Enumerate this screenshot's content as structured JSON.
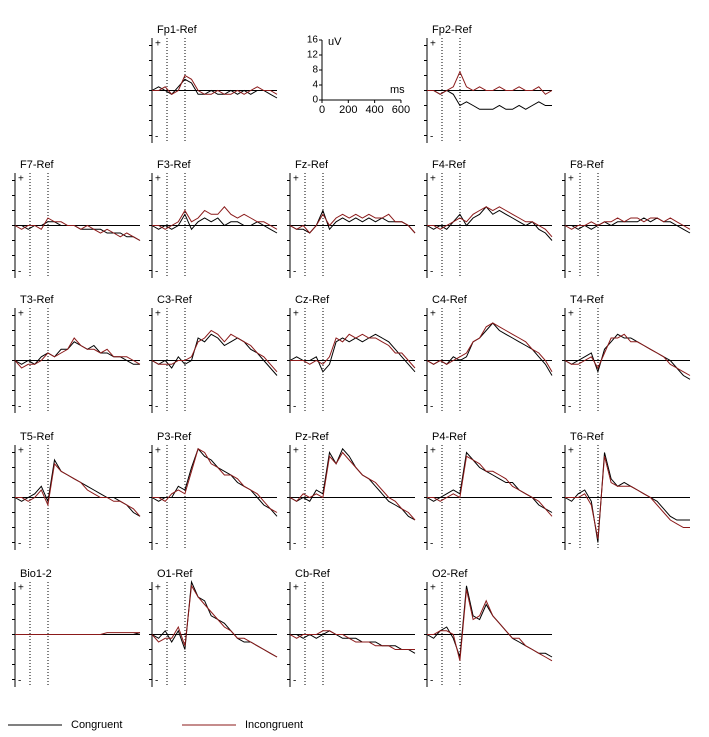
{
  "chart_data": {
    "type": "line",
    "x": [
      -250,
      -200,
      -150,
      -100,
      -50,
      0,
      50,
      100,
      150,
      200,
      250,
      300,
      350,
      400,
      450,
      500,
      550,
      600,
      650,
      700
    ],
    "xlim": [
      -250,
      700
    ],
    "ylim": [
      -14,
      14
    ],
    "panel_yticks": [
      -12,
      -8,
      -4,
      0,
      4,
      8,
      12
    ],
    "axis_signs": [
      "+",
      "-"
    ],
    "legend": [
      {
        "name": "Congruent",
        "color": "#000000"
      },
      {
        "name": "Incongruent",
        "color": "#8b1a1a"
      }
    ],
    "scale": {
      "xlabel": "ms",
      "ylabel": "uV",
      "xticks": [
        0,
        200,
        400,
        600
      ],
      "yticks": [
        0,
        4,
        8,
        12,
        16
      ]
    },
    "panels": [
      {
        "title": "Fp1-Ref",
        "series": [
          {
            "values": [
              0,
              1,
              0,
              -1,
              1,
              3,
              2,
              -1,
              -1,
              0,
              -1,
              -1,
              0,
              -1,
              0,
              -1,
              0,
              0,
              -1,
              -2
            ]
          },
          {
            "values": [
              0,
              0,
              1,
              -1,
              0,
              4,
              3,
              0,
              -1,
              -1,
              0,
              -1,
              -1,
              0,
              -1,
              0,
              1,
              0,
              0,
              -1
            ]
          }
        ]
      },
      {
        "title": "Fp2-Ref",
        "series": [
          {
            "values": [
              0,
              0,
              -1,
              0,
              -1,
              -4,
              -3,
              -4,
              -5,
              -5,
              -5,
              -4,
              -5,
              -5,
              -4,
              -5,
              -4,
              -3,
              -4,
              -4
            ]
          },
          {
            "values": [
              0,
              0,
              -1,
              0,
              1,
              5,
              1,
              0,
              1,
              0,
              0,
              1,
              0,
              0,
              1,
              0,
              0,
              1,
              -1,
              0
            ]
          }
        ]
      },
      {
        "title": "F7-Ref",
        "series": [
          {
            "values": [
              0,
              0,
              -1,
              0,
              0,
              1,
              1,
              0,
              0,
              0,
              -1,
              -1,
              -1,
              -1,
              -2,
              -2,
              -2,
              -3,
              -3,
              -4
            ]
          },
          {
            "values": [
              0,
              -1,
              0,
              0,
              -1,
              2,
              1,
              1,
              0,
              0,
              -1,
              0,
              -1,
              -2,
              -1,
              -2,
              -3,
              -2,
              -3,
              -4
            ]
          }
        ]
      },
      {
        "title": "F3-Ref",
        "series": [
          {
            "values": [
              0,
              -1,
              0,
              -1,
              0,
              3,
              -1,
              1,
              2,
              1,
              2,
              0,
              1,
              1,
              0,
              0,
              1,
              0,
              -1,
              -2
            ]
          },
          {
            "values": [
              0,
              0,
              -1,
              0,
              1,
              4,
              1,
              2,
              4,
              3,
              3,
              5,
              3,
              2,
              3,
              2,
              1,
              1,
              0,
              -1
            ]
          }
        ]
      },
      {
        "title": "Fz-Ref",
        "series": [
          {
            "values": [
              0,
              -1,
              -1,
              -2,
              0,
              4,
              -1,
              1,
              2,
              1,
              2,
              1,
              2,
              1,
              2,
              1,
              1,
              1,
              0,
              -2
            ]
          },
          {
            "values": [
              0,
              -1,
              0,
              -2,
              0,
              3,
              0,
              2,
              3,
              2,
              3,
              2,
              3,
              2,
              2,
              3,
              1,
              1,
              0,
              -2
            ]
          }
        ]
      },
      {
        "title": "F4-Ref",
        "series": [
          {
            "values": [
              0,
              -1,
              0,
              -1,
              1,
              3,
              0,
              2,
              3,
              5,
              3,
              4,
              3,
              2,
              1,
              0,
              1,
              -1,
              -2,
              -4
            ]
          },
          {
            "values": [
              0,
              0,
              -1,
              0,
              1,
              2,
              1,
              3,
              4,
              5,
              4,
              5,
              4,
              3,
              2,
              1,
              1,
              0,
              -1,
              -3
            ]
          }
        ]
      },
      {
        "title": "F8-Ref",
        "series": [
          {
            "values": [
              0,
              0,
              -1,
              0,
              -1,
              0,
              1,
              0,
              1,
              1,
              1,
              1,
              2,
              1,
              2,
              1,
              1,
              0,
              -1,
              -2
            ]
          },
          {
            "values": [
              0,
              -1,
              0,
              0,
              1,
              0,
              1,
              1,
              2,
              1,
              2,
              2,
              1,
              2,
              2,
              1,
              2,
              1,
              0,
              -1
            ]
          }
        ]
      },
      {
        "title": "T3-Ref",
        "series": [
          {
            "values": [
              0,
              -1,
              0,
              -1,
              1,
              2,
              1,
              3,
              3,
              5,
              4,
              3,
              4,
              2,
              2,
              1,
              1,
              0,
              -1,
              -1
            ]
          },
          {
            "values": [
              0,
              -2,
              -1,
              -1,
              0,
              2,
              1,
              2,
              3,
              6,
              4,
              3,
              3,
              2,
              3,
              1,
              1,
              1,
              0,
              -1
            ]
          }
        ]
      },
      {
        "title": "C3-Ref",
        "series": [
          {
            "values": [
              0,
              -1,
              0,
              -2,
              1,
              -1,
              0,
              6,
              5,
              7,
              6,
              4,
              5,
              6,
              5,
              3,
              2,
              0,
              -2,
              -4
            ]
          },
          {
            "values": [
              0,
              -1,
              -1,
              -1,
              0,
              0,
              1,
              5,
              6,
              8,
              7,
              5,
              7,
              6,
              5,
              4,
              2,
              1,
              -1,
              -3
            ]
          }
        ]
      },
      {
        "title": "Cz-Ref",
        "series": [
          {
            "values": [
              0,
              1,
              0,
              0,
              1,
              -3,
              -1,
              5,
              6,
              5,
              6,
              5,
              6,
              7,
              6,
              5,
              3,
              1,
              -1,
              -3
            ]
          },
          {
            "values": [
              0,
              0,
              0,
              -1,
              0,
              -1,
              1,
              6,
              5,
              7,
              6,
              7,
              6,
              6,
              5,
              4,
              2,
              2,
              0,
              -2
            ]
          }
        ]
      },
      {
        "title": "C4-Ref",
        "series": [
          {
            "values": [
              0,
              -1,
              0,
              -1,
              1,
              0,
              1,
              5,
              6,
              8,
              10,
              8,
              7,
              6,
              5,
              4,
              3,
              1,
              -1,
              -4
            ]
          },
          {
            "values": [
              0,
              -1,
              0,
              -1,
              0,
              1,
              2,
              5,
              6,
              9,
              10,
              9,
              8,
              7,
              6,
              5,
              3,
              2,
              0,
              -3
            ]
          }
        ]
      },
      {
        "title": "T4-Ref",
        "series": [
          {
            "values": [
              0,
              -1,
              0,
              1,
              2,
              -3,
              3,
              5,
              7,
              6,
              6,
              5,
              4,
              3,
              2,
              1,
              0,
              -2,
              -4,
              -5
            ]
          },
          {
            "values": [
              0,
              -1,
              -1,
              0,
              1,
              -2,
              2,
              6,
              6,
              7,
              5,
              5,
              4,
              3,
              2,
              1,
              -1,
              -2,
              -3,
              -4
            ]
          }
        ]
      },
      {
        "title": "T5-Ref",
        "series": [
          {
            "values": [
              0,
              -1,
              0,
              1,
              3,
              -1,
              10,
              7,
              6,
              5,
              4,
              3,
              2,
              1,
              0,
              0,
              -1,
              -2,
              -4,
              -5
            ]
          },
          {
            "values": [
              0,
              0,
              -1,
              0,
              2,
              -2,
              9,
              7,
              6,
              5,
              4,
              2,
              1,
              0,
              0,
              -1,
              -1,
              -2,
              -3,
              -5
            ]
          }
        ]
      },
      {
        "title": "P3-Ref",
        "series": [
          {
            "values": [
              0,
              -1,
              0,
              0,
              3,
              2,
              8,
              13,
              11,
              10,
              8,
              7,
              6,
              4,
              3,
              2,
              0,
              -2,
              -3,
              -5
            ]
          },
          {
            "values": [
              0,
              0,
              -1,
              1,
              2,
              1,
              7,
              13,
              12,
              9,
              8,
              6,
              6,
              5,
              3,
              2,
              1,
              -1,
              -3,
              -4
            ]
          }
        ]
      },
      {
        "title": "Pz-Ref",
        "series": [
          {
            "values": [
              0,
              -1,
              0,
              -1,
              2,
              1,
              12,
              9,
              13,
              11,
              8,
              6,
              5,
              3,
              1,
              -1,
              -2,
              -3,
              -5,
              -6
            ]
          },
          {
            "values": [
              0,
              -1,
              1,
              0,
              1,
              0,
              11,
              9,
              12,
              10,
              8,
              6,
              5,
              4,
              2,
              0,
              -1,
              -3,
              -4,
              -6
            ]
          }
        ]
      },
      {
        "title": "P4-Ref",
        "series": [
          {
            "values": [
              0,
              -1,
              0,
              1,
              2,
              1,
              12,
              10,
              8,
              7,
              6,
              5,
              4,
              4,
              2,
              1,
              0,
              -2,
              -3,
              -4
            ]
          },
          {
            "values": [
              0,
              0,
              -1,
              0,
              1,
              0,
              11,
              10,
              9,
              7,
              7,
              6,
              5,
              3,
              2,
              1,
              0,
              -1,
              -3,
              -5
            ]
          }
        ]
      },
      {
        "title": "T6-Ref",
        "series": [
          {
            "values": [
              0,
              -1,
              1,
              2,
              -1,
              -12,
              12,
              5,
              3,
              4,
              3,
              2,
              1,
              0,
              -1,
              -3,
              -5,
              -6,
              -6,
              -6
            ]
          },
          {
            "values": [
              0,
              0,
              0,
              1,
              -2,
              -11,
              11,
              4,
              3,
              3,
              3,
              2,
              1,
              0,
              -2,
              -4,
              -6,
              -7,
              -8,
              -8
            ]
          }
        ]
      },
      {
        "title": "Bio1-2",
        "series": [
          {
            "values": [
              0,
              0,
              0,
              0,
              0,
              0,
              0,
              0,
              0,
              0,
              0,
              0,
              0,
              0,
              0,
              0,
              0,
              0,
              0,
              0.5
            ]
          },
          {
            "values": [
              0,
              0,
              0,
              0,
              0,
              0,
              0,
              0,
              0,
              0,
              0,
              0,
              0,
              0,
              0.5,
              0.5,
              0.5,
              0.5,
              0.5,
              0.5
            ]
          }
        ]
      },
      {
        "title": "O1-Ref",
        "series": [
          {
            "values": [
              0,
              -1,
              1,
              -2,
              1,
              -4,
              14,
              10,
              9,
              5,
              4,
              3,
              1,
              -1,
              -2,
              -2,
              -3,
              -4,
              -5,
              -6
            ]
          },
          {
            "values": [
              0,
              -2,
              -1,
              -1,
              2,
              -3,
              13,
              10,
              8,
              6,
              4,
              2,
              1,
              -1,
              -1,
              -2,
              -3,
              -4,
              -5,
              -6
            ]
          }
        ]
      },
      {
        "title": "Cb-Ref",
        "series": [
          {
            "values": [
              0,
              0,
              -1,
              0,
              -1,
              0,
              1,
              0,
              -1,
              -1,
              -1,
              -2,
              -2,
              -2,
              -3,
              -3,
              -3,
              -4,
              -4,
              -5
            ]
          },
          {
            "values": [
              0,
              -1,
              0,
              0,
              0,
              1,
              1,
              0,
              0,
              -1,
              -2,
              -2,
              -2,
              -3,
              -3,
              -3,
              -4,
              -4,
              -4,
              -4
            ]
          }
        ]
      },
      {
        "title": "O2-Ref",
        "series": [
          {
            "values": [
              0,
              -1,
              1,
              2,
              -1,
              -6,
              13,
              5,
              4,
              8,
              5,
              3,
              1,
              -1,
              -2,
              -3,
              -4,
              -5,
              -5,
              -6
            ]
          },
          {
            "values": [
              0,
              0,
              1,
              1,
              0,
              -7,
              12,
              4,
              5,
              9,
              5,
              3,
              1,
              -1,
              -1,
              -3,
              -4,
              -5,
              -6,
              -7
            ]
          }
        ]
      }
    ]
  }
}
